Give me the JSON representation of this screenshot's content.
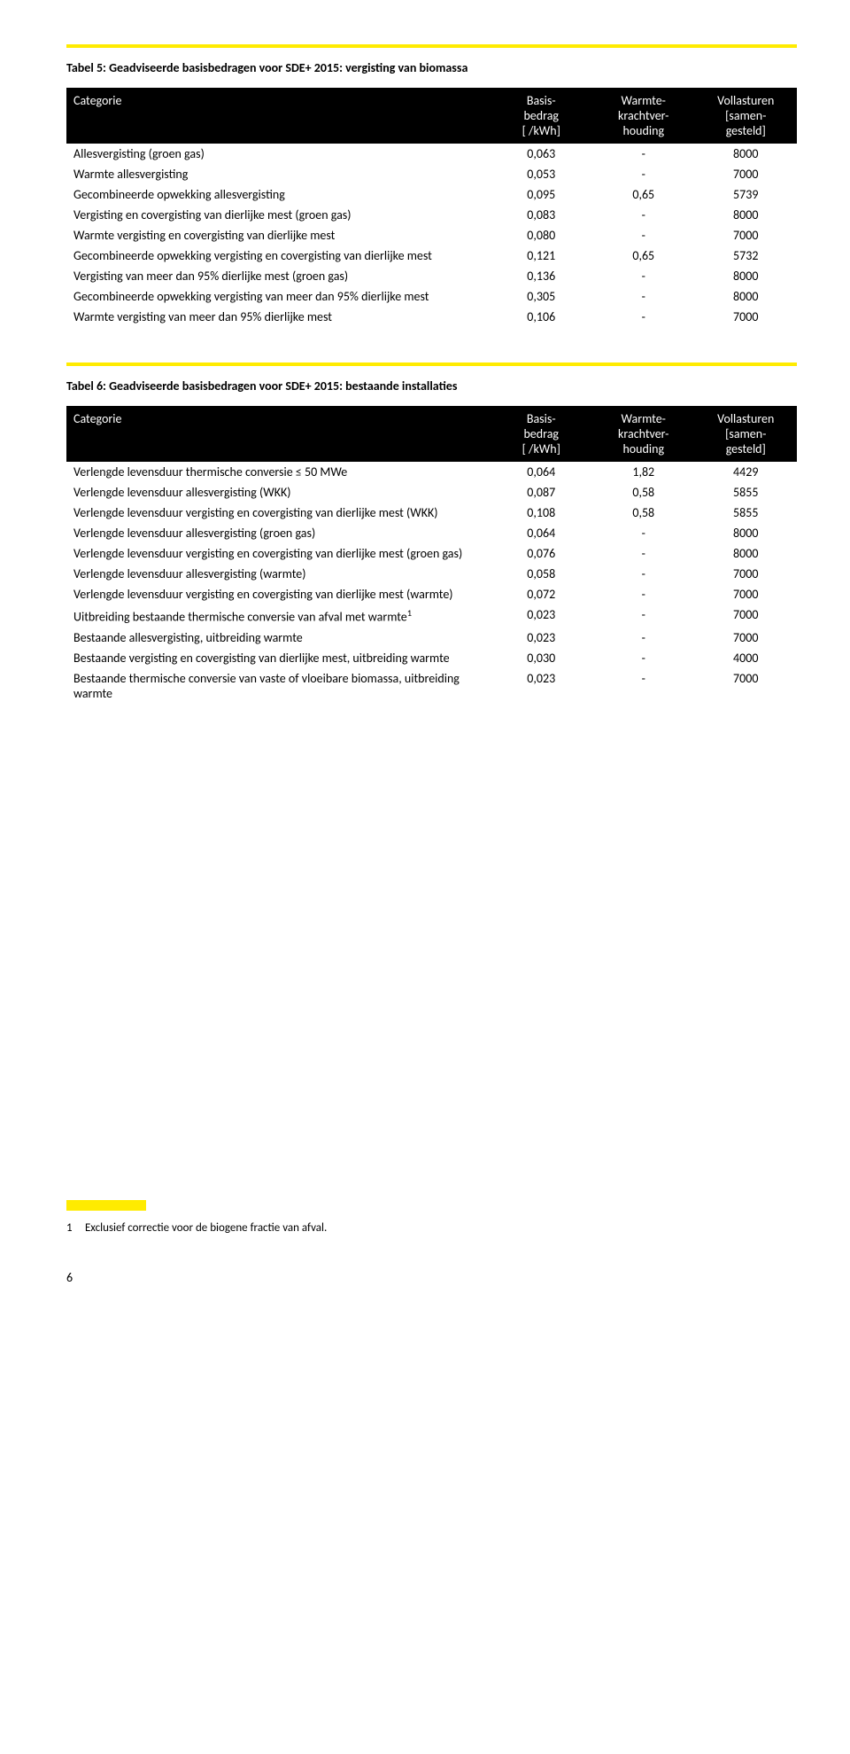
{
  "table5": {
    "title": "Tabel 5: Geadviseerde basisbedragen voor SDE+ 2015: vergisting van biomassa",
    "headers": {
      "cat": "Categorie",
      "h1a": "Basis-",
      "h1b": "bedrag",
      "h1c": "[ /kWh]",
      "h2a": "Warmte-",
      "h2b": "krachtver-",
      "h2c": "houding",
      "h3a": "Vollasturen",
      "h3b": "[samen-",
      "h3c": "gesteld]"
    },
    "rows": [
      {
        "c": "Allesvergisting (groen gas)",
        "v1": "0,063",
        "v2": "-",
        "v3": "8000"
      },
      {
        "c": "Warmte allesvergisting",
        "v1": "0,053",
        "v2": "-",
        "v3": "7000"
      },
      {
        "c": "Gecombineerde opwekking allesvergisting",
        "v1": "0,095",
        "v2": "0,65",
        "v3": "5739"
      },
      {
        "c": "Vergisting en covergisting van dierlijke mest (groen gas)",
        "v1": "0,083",
        "v2": "-",
        "v3": "8000"
      },
      {
        "c": "Warmte vergisting en covergisting van dierlijke mest",
        "v1": "0,080",
        "v2": "-",
        "v3": "7000"
      },
      {
        "c": "Gecombineerde opwekking vergisting en covergisting van dierlijke mest",
        "v1": "0,121",
        "v2": "0,65",
        "v3": "5732"
      },
      {
        "c": "Vergisting van meer dan 95% dierlijke mest (groen gas)",
        "v1": "0,136",
        "v2": "-",
        "v3": "8000"
      },
      {
        "c": "Gecombineerde opwekking vergisting van meer dan 95% dierlijke mest",
        "v1": "0,305",
        "v2": "-",
        "v3": "8000"
      },
      {
        "c": "Warmte vergisting van meer dan 95% dierlijke mest",
        "v1": "0,106",
        "v2": "-",
        "v3": "7000"
      }
    ]
  },
  "table6": {
    "title": "Tabel 6: Geadviseerde basisbedragen voor SDE+ 2015: bestaande installaties",
    "headers": {
      "cat": "Categorie",
      "h1a": "Basis-",
      "h1b": "bedrag",
      "h1c": "[ /kWh]",
      "h2a": "Warmte-",
      "h2b": "krachtver-",
      "h2c": "houding",
      "h3a": "Vollasturen",
      "h3b": "[samen-",
      "h3c": "gesteld]"
    },
    "rows": [
      {
        "c": "Verlengde levensduur thermische conversie ≤ 50 MWe",
        "v1": "0,064",
        "v2": "1,82",
        "v3": "4429"
      },
      {
        "c": "Verlengde levensduur allesvergisting (WKK)",
        "v1": "0,087",
        "v2": "0,58",
        "v3": "5855"
      },
      {
        "c": "Verlengde levensduur vergisting en covergisting van dierlijke mest (WKK)",
        "v1": "0,108",
        "v2": "0,58",
        "v3": "5855"
      },
      {
        "c": "Verlengde levensduur allesvergisting (groen gas)",
        "v1": "0,064",
        "v2": "-",
        "v3": "8000"
      },
      {
        "c": "Verlengde levensduur vergisting en covergisting van dierlijke mest (groen gas)",
        "v1": "0,076",
        "v2": "-",
        "v3": "8000"
      },
      {
        "c": "Verlengde levensduur allesvergisting (warmte)",
        "v1": "0,058",
        "v2": "-",
        "v3": "7000"
      },
      {
        "c": "Verlengde levensduur vergisting en covergisting van dierlijke mest (warmte)",
        "v1": "0,072",
        "v2": "-",
        "v3": "7000"
      },
      {
        "c": "Uitbreiding bestaande thermische conversie van afval met warmte",
        "sup": "1",
        "v1": "0,023",
        "v2": "-",
        "v3": "7000"
      },
      {
        "c": "Bestaande allesvergisting, uitbreiding warmte",
        "v1": "0,023",
        "v2": "-",
        "v3": "7000"
      },
      {
        "c": "Bestaande vergisting en covergisting van dierlijke mest, uitbreiding warmte",
        "v1": "0,030",
        "v2": "-",
        "v3": "4000"
      },
      {
        "c": "Bestaande thermische conversie van vaste of vloeibare biomassa, uitbreiding warmte",
        "v1": "0,023",
        "v2": "-",
        "v3": "7000"
      }
    ]
  },
  "footnote": {
    "num": "1",
    "text": "Exclusief correctie voor de biogene fractie van afval."
  },
  "pageNumber": "6",
  "colors": {
    "yellow": "#ffeb00",
    "black": "#000000",
    "white": "#ffffff"
  }
}
